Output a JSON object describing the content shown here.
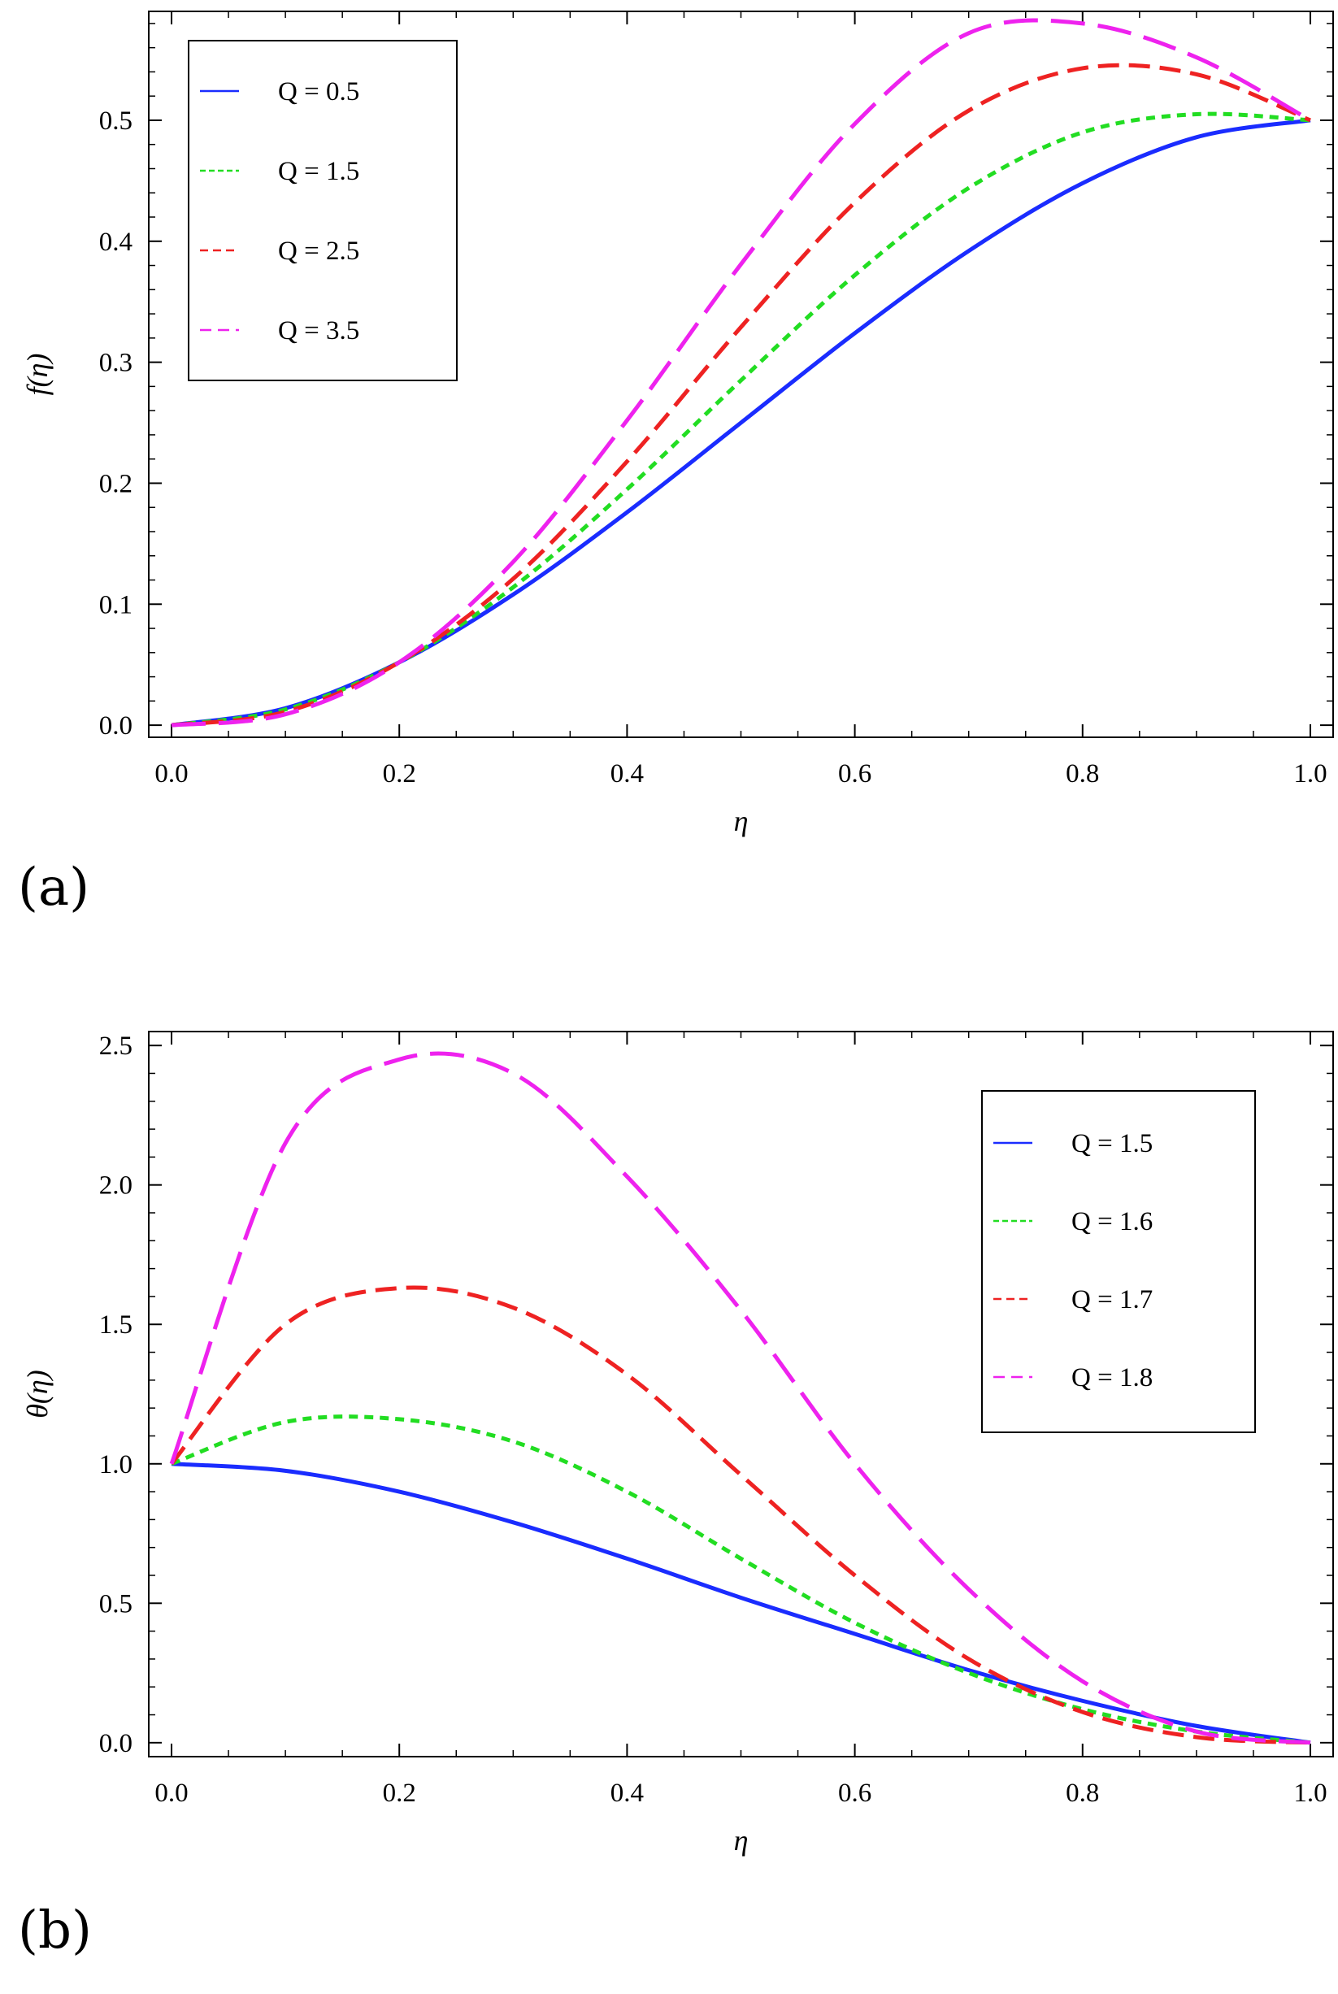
{
  "chart_data": [
    {
      "type": "line",
      "panel_label": "(a)",
      "title": "",
      "xlabel": "η",
      "ylabel": "f(η)",
      "xlim": [
        -0.02,
        1.02
      ],
      "ylim": [
        -0.01,
        0.59
      ],
      "xticks": [
        0.0,
        0.2,
        0.4,
        0.6,
        0.8,
        1.0
      ],
      "xtick_labels": [
        "0.0",
        "0.2",
        "0.4",
        "0.6",
        "0.8",
        "1.0"
      ],
      "yticks": [
        0.0,
        0.1,
        0.2,
        0.3,
        0.4,
        0.5
      ],
      "ytick_labels": [
        "0.0",
        "0.1",
        "0.2",
        "0.3",
        "0.4",
        "0.5"
      ],
      "legend_position": "top-left",
      "x": [
        0.0,
        0.1,
        0.2,
        0.3,
        0.4,
        0.5,
        0.6,
        0.7,
        0.8,
        0.9,
        1.0
      ],
      "series": [
        {
          "name": "Q = 0.5",
          "color": "#1a2cff",
          "dash": "solid",
          "values": [
            0.0,
            0.014,
            0.052,
            0.108,
            0.176,
            0.25,
            0.324,
            0.392,
            0.448,
            0.486,
            0.5
          ]
        },
        {
          "name": "Q = 1.5",
          "color": "#22dd22",
          "dash": "short",
          "values": [
            0.0,
            0.013,
            0.052,
            0.114,
            0.195,
            0.285,
            0.372,
            0.444,
            0.49,
            0.505,
            0.5
          ]
        },
        {
          "name": "Q = 2.5",
          "color": "#ee2222",
          "dash": "medium",
          "values": [
            0.0,
            0.011,
            0.052,
            0.121,
            0.218,
            0.329,
            0.432,
            0.508,
            0.543,
            0.538,
            0.5
          ]
        },
        {
          "name": "Q = 3.5",
          "color": "#ee22ee",
          "dash": "long",
          "values": [
            0.0,
            0.009,
            0.052,
            0.135,
            0.252,
            0.381,
            0.497,
            0.572,
            0.58,
            0.552,
            0.5
          ]
        }
      ]
    },
    {
      "type": "line",
      "panel_label": "(b)",
      "title": "",
      "xlabel": "η",
      "ylabel": "θ(η)",
      "xlim": [
        -0.02,
        1.02
      ],
      "ylim": [
        -0.05,
        2.55
      ],
      "xticks": [
        0.0,
        0.2,
        0.4,
        0.6,
        0.8,
        1.0
      ],
      "xtick_labels": [
        "0.0",
        "0.2",
        "0.4",
        "0.6",
        "0.8",
        "1.0"
      ],
      "yticks": [
        0.0,
        0.5,
        1.0,
        1.5,
        2.0,
        2.5
      ],
      "ytick_labels": [
        "0.0",
        "0.5",
        "1.0",
        "1.5",
        "2.0",
        "2.5"
      ],
      "legend_position": "top-right",
      "x": [
        0.0,
        0.1,
        0.2,
        0.3,
        0.4,
        0.5,
        0.6,
        0.7,
        0.8,
        0.9,
        1.0
      ],
      "series": [
        {
          "name": "Q = 1.5",
          "color": "#1a2cff",
          "dash": "solid",
          "values": [
            1.0,
            0.975,
            0.9,
            0.79,
            0.66,
            0.52,
            0.39,
            0.26,
            0.15,
            0.06,
            0.0
          ]
        },
        {
          "name": "Q = 1.6",
          "color": "#22dd22",
          "dash": "short",
          "values": [
            1.0,
            1.15,
            1.16,
            1.08,
            0.9,
            0.66,
            0.43,
            0.25,
            0.12,
            0.04,
            0.0
          ]
        },
        {
          "name": "Q = 1.7",
          "color": "#ee2222",
          "dash": "medium",
          "values": [
            1.0,
            1.5,
            1.63,
            1.56,
            1.32,
            0.96,
            0.6,
            0.3,
            0.11,
            0.02,
            0.0
          ]
        },
        {
          "name": "Q = 1.8",
          "color": "#ee22ee",
          "dash": "long",
          "values": [
            1.0,
            2.15,
            2.45,
            2.4,
            2.03,
            1.55,
            1.0,
            0.55,
            0.22,
            0.04,
            0.0
          ]
        }
      ]
    }
  ]
}
